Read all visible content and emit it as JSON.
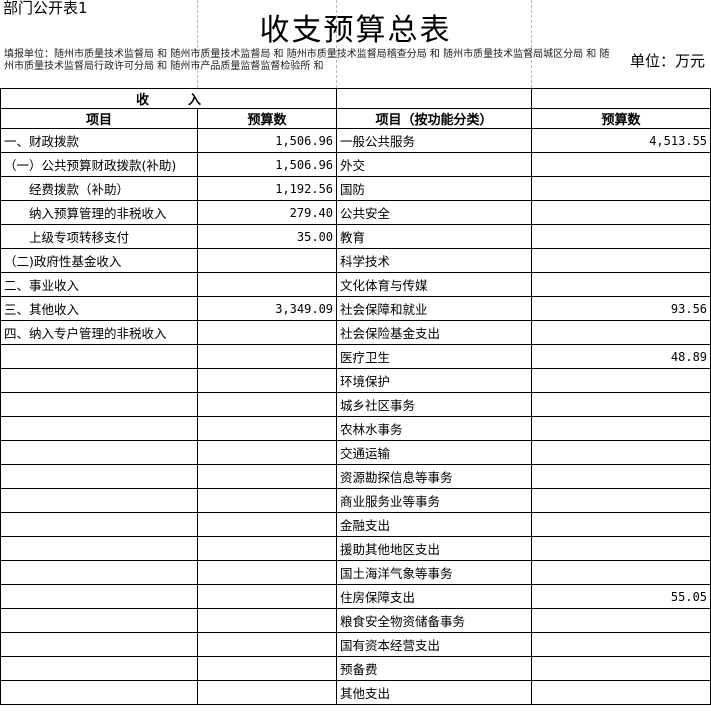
{
  "form_no": "部门公开表1",
  "title": "收支预算总表",
  "filer": "填报单位：随州市质量技术监督局 和 随州市质量技术监督局 和 随州市质量技术监督局稽查分局 和 随州市质量技术监督局城区分局 和 随州市质量技术监督局行政许可分局 和 随州市产品质量监督监督检验所 和",
  "unit": "单位：万元",
  "section_income": "收　　　入",
  "headers": [
    "项目",
    "预算数",
    "项目（按功能分类）",
    "预算数"
  ],
  "rows": [
    [
      "一、财政拨款",
      "1,506.96",
      "一般公共服务",
      "4,513.55"
    ],
    [
      "（一）公共预算财政拨款(补助)",
      "1,506.96",
      "外交",
      ""
    ],
    [
      "　　经费拨款（补助）",
      "1,192.56",
      "国防",
      ""
    ],
    [
      "　　纳入预算管理的非税收入",
      "279.40",
      "公共安全",
      ""
    ],
    [
      "　　上级专项转移支付",
      "35.00",
      "教育",
      ""
    ],
    [
      "（二)政府性基金收入",
      "",
      "科学技术",
      ""
    ],
    [
      "二、事业收入",
      "",
      "文化体育与传媒",
      ""
    ],
    [
      "三、其他收入",
      "3,349.09",
      "社会保障和就业",
      "93.56"
    ],
    [
      "四、纳入专户管理的非税收入",
      "",
      "社会保险基金支出",
      ""
    ],
    [
      "",
      "",
      "医疗卫生",
      "48.89"
    ],
    [
      "",
      "",
      "环境保护",
      ""
    ],
    [
      "",
      "",
      "城乡社区事务",
      ""
    ],
    [
      "",
      "",
      "农林水事务",
      ""
    ],
    [
      "",
      "",
      "交通运输",
      ""
    ],
    [
      "",
      "",
      "资源勘探信息等事务",
      ""
    ],
    [
      "",
      "",
      "商业服务业等事务",
      ""
    ],
    [
      "",
      "",
      "金融支出",
      ""
    ],
    [
      "",
      "",
      "援助其他地区支出",
      ""
    ],
    [
      "",
      "",
      "国土海洋气象等事务",
      ""
    ],
    [
      "",
      "",
      "住房保障支出",
      "55.05"
    ],
    [
      "",
      "",
      "粮食安全物资储备事务",
      ""
    ],
    [
      "",
      "",
      "国有资本经营支出",
      ""
    ],
    [
      "",
      "",
      "预备费",
      ""
    ],
    [
      "",
      "",
      "其他支出",
      ""
    ]
  ]
}
